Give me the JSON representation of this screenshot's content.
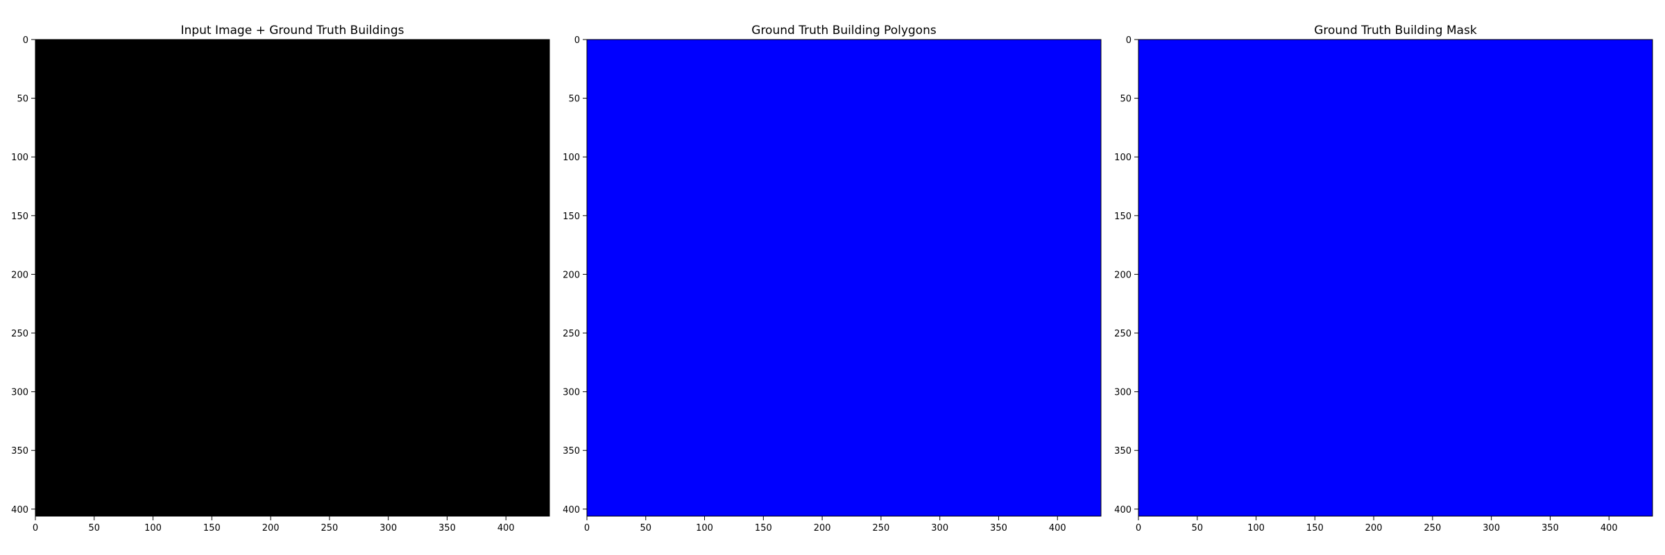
{
  "chart_data": [
    {
      "type": "heatmap",
      "title": "Input Image + Ground Truth Buildings",
      "fill_color": "#000000",
      "xlim": [
        0,
        437
      ],
      "ylim": [
        406,
        0
      ],
      "x_ticks": [
        0,
        50,
        100,
        150,
        200,
        250,
        300,
        350,
        400
      ],
      "y_ticks": [
        0,
        50,
        100,
        150,
        200,
        250,
        300,
        350,
        400
      ]
    },
    {
      "type": "heatmap",
      "title": "Ground Truth Building Polygons",
      "fill_color": "#0000ff",
      "xlim": [
        0,
        437
      ],
      "ylim": [
        406,
        0
      ],
      "x_ticks": [
        0,
        50,
        100,
        150,
        200,
        250,
        300,
        350,
        400
      ],
      "y_ticks": [
        0,
        50,
        100,
        150,
        200,
        250,
        300,
        350,
        400
      ]
    },
    {
      "type": "heatmap",
      "title": "Ground Truth Building Mask",
      "fill_color": "#0000ff",
      "xlim": [
        0,
        437
      ],
      "ylim": [
        406,
        0
      ],
      "x_ticks": [
        0,
        50,
        100,
        150,
        200,
        250,
        300,
        350,
        400
      ],
      "y_ticks": [
        0,
        50,
        100,
        150,
        200,
        250,
        300,
        350,
        400
      ]
    }
  ]
}
